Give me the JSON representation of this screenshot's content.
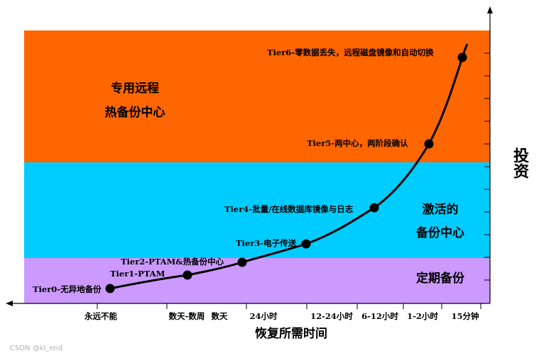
{
  "bands": [
    {
      "id": "hot",
      "color": "#ff6600",
      "lines": [
        "专用远程",
        "热备份中心"
      ]
    },
    {
      "id": "warm",
      "color": "#00ccff",
      "lines": [
        "激活的",
        "备份中心"
      ]
    },
    {
      "id": "cold",
      "color": "#cc99ff",
      "lines": [
        "定期备份"
      ]
    }
  ],
  "x_axis": {
    "title": "恢复所需时间",
    "ticks": [
      "永远不能",
      "数天-数周",
      "数天",
      "24小时",
      "12-24小时",
      "6-12小时",
      "1-2小时",
      "15分钟"
    ]
  },
  "y_axis": {
    "title": "投资"
  },
  "tiers": [
    {
      "label": "Tier0-无异地备份"
    },
    {
      "label": "Tier1-PTAM"
    },
    {
      "label": "Tier2-PTAM&热备份中心"
    },
    {
      "label": "Tier3-电子传送"
    },
    {
      "label": "Tier4-批量/在线数据库镜像与日志"
    },
    {
      "label": "Tier5-两中心，两阶段确认"
    },
    {
      "label": "Tier6-零数据丢失，远程磁盘镜像和自动切换"
    }
  ],
  "watermark": "CSDN @kl_end"
}
